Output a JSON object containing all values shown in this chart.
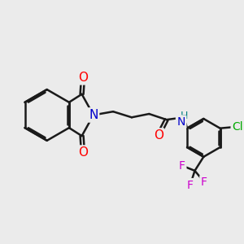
{
  "background_color": "#ebebeb",
  "bond_color": "#1a1a1a",
  "bond_width": 1.8,
  "atom_colors": {
    "N": "#0000cc",
    "O": "#ff0000",
    "F": "#cc00cc",
    "Cl": "#00aa00",
    "H": "#008080",
    "C": "#1a1a1a"
  },
  "font_size": 10
}
